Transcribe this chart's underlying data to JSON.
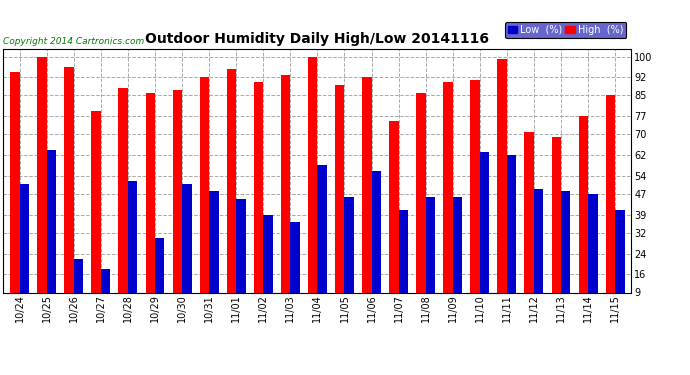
{
  "title": "Outdoor Humidity Daily High/Low 20141116",
  "copyright": "Copyright 2014 Cartronics.com",
  "categories": [
    "10/24",
    "10/25",
    "10/26",
    "10/27",
    "10/28",
    "10/29",
    "10/30",
    "10/31",
    "11/01",
    "11/02",
    "11/03",
    "11/04",
    "11/05",
    "11/06",
    "11/07",
    "11/08",
    "11/09",
    "11/10",
    "11/11",
    "11/12",
    "11/13",
    "11/14",
    "11/15"
  ],
  "high": [
    94,
    100,
    96,
    79,
    88,
    86,
    87,
    92,
    95,
    90,
    93,
    100,
    89,
    92,
    75,
    86,
    90,
    91,
    99,
    71,
    69,
    77,
    85
  ],
  "low": [
    51,
    64,
    22,
    18,
    52,
    30,
    51,
    48,
    45,
    39,
    36,
    58,
    46,
    56,
    41,
    46,
    46,
    63,
    62,
    49,
    48,
    47,
    41
  ],
  "high_color": "#ff0000",
  "low_color": "#0000cc",
  "ylim_min": 9,
  "ylim_max": 103,
  "yticks": [
    9,
    16,
    24,
    32,
    39,
    47,
    54,
    62,
    70,
    77,
    85,
    92,
    100
  ],
  "grid_color": "#aaaaaa",
  "bg_color": "#ffffff",
  "plot_bg_color": "#ffffff",
  "bar_width": 0.35,
  "legend_low_label": "Low  (%)",
  "legend_high_label": "High  (%)",
  "title_fontsize": 10,
  "copyright_fontsize": 6.5,
  "tick_fontsize": 7,
  "border_color": "#000000"
}
